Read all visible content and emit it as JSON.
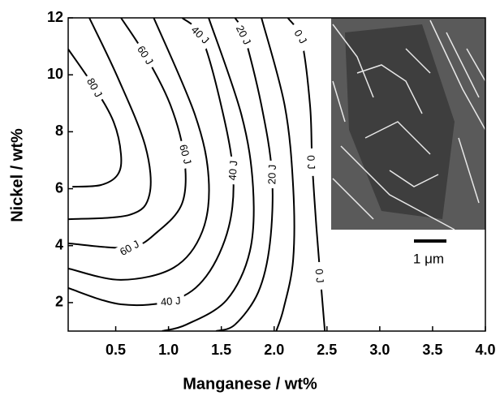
{
  "chart_data": {
    "type": "contour",
    "x_label": "Manganese / wt%",
    "y_label": "Nickel / wt%",
    "xlim": [
      0.05,
      4.0
    ],
    "ylim": [
      1,
      12
    ],
    "xticks": [
      0.5,
      {
        "value": 1,
        "label": "1.0"
      },
      1.5,
      {
        "value": 2,
        "label": "2.0"
      },
      2.5,
      {
        "value": 3,
        "label": "3.0"
      },
      3.5,
      {
        "value": 4,
        "label": "4.0"
      }
    ],
    "yticks": [
      2,
      4,
      6,
      8,
      10,
      12
    ],
    "color": "#000000",
    "contours": [
      {
        "x": [
          0.05,
          0.3,
          0.48,
          0.55,
          0.52,
          0.36,
          0.09
        ],
        "y": [
          10.9,
          9.55,
          8.35,
          7.2,
          6.5,
          6.13,
          6.07
        ],
        "labels": [
          {
            "text": "80 J",
            "x": 0.3,
            "y": 9.55
          }
        ]
      },
      {
        "x": [
          0.25,
          0.52,
          0.78,
          0.82,
          0.63,
          0.05
        ],
        "y": [
          12,
          9.9,
          7.5,
          5.8,
          5.08,
          4.93
        ]
      },
      {
        "x": [
          0.55,
          0.78,
          1.02,
          1.15,
          1.13,
          0.9,
          0.63,
          0.05
        ],
        "y": [
          12,
          10.69,
          8.92,
          7.07,
          5.5,
          4.5,
          3.94,
          4.08
        ],
        "labels": [
          {
            "text": "60 J",
            "x": 0.78,
            "y": 10.69
          },
          {
            "text": "60 J",
            "x": 1.16,
            "y": 7.21
          },
          {
            "text": "60 J",
            "x": 0.63,
            "y": 3.92
          }
        ]
      },
      {
        "x": [
          0.86,
          1.25,
          1.38,
          1.32,
          1.05,
          0.55,
          0.05
        ],
        "y": [
          12,
          8.6,
          6.36,
          4.5,
          3.23,
          2.8,
          3.2
        ]
      },
      {
        "x": [
          1.13,
          1.31,
          1.48,
          1.61,
          1.57,
          1.36,
          1.05,
          0.55,
          0.05
        ],
        "y": [
          12,
          11.34,
          9.21,
          6.64,
          4.65,
          2.94,
          2.09,
          1.94,
          2.51
        ],
        "labels": [
          {
            "text": "40 J",
            "x": 1.3,
            "y": 11.4
          },
          {
            "text": "40 J",
            "x": 1.61,
            "y": 6.64
          },
          {
            "text": "40 J",
            "x": 1.02,
            "y": 2.05
          }
        ]
      },
      {
        "x": [
          1.38,
          1.69,
          1.8,
          1.77,
          1.55,
          1.17,
          0.94
        ],
        "y": [
          12,
          8.6,
          6.07,
          3.8,
          2.09,
          1.23,
          1.0
        ]
      },
      {
        "x": [
          1.63,
          1.72,
          1.88,
          1.98,
          1.96,
          1.85,
          1.63,
          1.45
        ],
        "y": [
          12,
          11.34,
          8.92,
          6.5,
          4.08,
          2.37,
          1.23,
          1.0
        ],
        "labels": [
          {
            "text": "20 J",
            "x": 1.71,
            "y": 11.4
          },
          {
            "text": "20 J",
            "x": 1.98,
            "y": 6.5
          }
        ]
      },
      {
        "x": [
          1.88,
          2.1,
          2.18,
          2.18,
          2.09,
          2.02
        ],
        "y": [
          12,
          8.92,
          6.07,
          3.51,
          1.8,
          1.0
        ]
      },
      {
        "x": [
          2.13,
          2.26,
          2.34,
          2.36,
          2.4,
          2.44,
          2.48
        ],
        "y": [
          12,
          11.2,
          8.92,
          6.93,
          4.65,
          2.8,
          1.0
        ],
        "labels": [
          {
            "text": "0 J",
            "x": 2.25,
            "y": 11.34
          },
          {
            "text": "0 J",
            "x": 2.35,
            "y": 6.93
          },
          {
            "text": "0 J",
            "x": 2.43,
            "y": 2.94
          }
        ]
      }
    ],
    "scale_bar_label": "1 μm"
  }
}
